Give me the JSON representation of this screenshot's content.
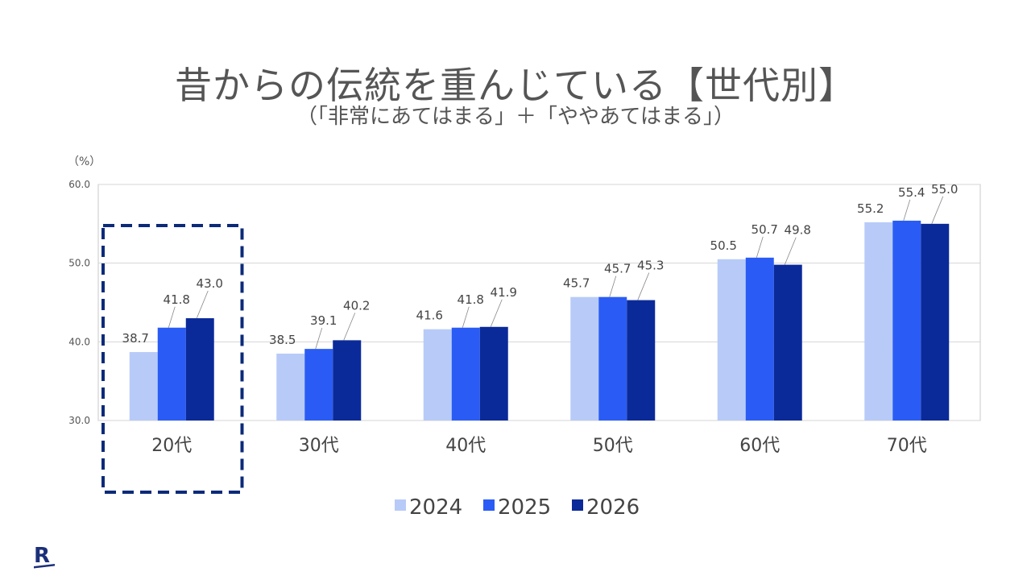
{
  "page": {
    "title": "昔からの伝統を重んじている【世代別】",
    "subtitle": "（「非常にあてはまる」＋「ややあてはまる」）",
    "brand_logo": "R"
  },
  "chart_data": {
    "type": "bar",
    "unit_label": "（%）",
    "categories": [
      "20代",
      "30代",
      "40代",
      "50代",
      "60代",
      "70代"
    ],
    "series": [
      {
        "name": "2024",
        "color": "#b8cbf8",
        "values": [
          38.7,
          38.5,
          41.6,
          45.7,
          50.5,
          55.2
        ]
      },
      {
        "name": "2025",
        "color": "#2a5cf5",
        "values": [
          41.8,
          39.1,
          41.8,
          45.7,
          50.7,
          55.4
        ]
      },
      {
        "name": "2026",
        "color": "#0b2a99",
        "values": [
          43.0,
          40.2,
          41.9,
          45.3,
          49.8,
          55.0
        ]
      }
    ],
    "value_labels": [
      [
        "38.7",
        "41.8",
        "43.0"
      ],
      [
        "38.5",
        "39.1",
        "40.2"
      ],
      [
        "41.6",
        "41.8",
        "41.9"
      ],
      [
        "45.7",
        "45.7",
        "45.3"
      ],
      [
        "50.5",
        "50.7",
        "49.8"
      ],
      [
        "55.2",
        "55.4",
        "55.0"
      ]
    ],
    "ylim": [
      30.0,
      60.0
    ],
    "yticks": [
      "30.0",
      "40.0",
      "50.0",
      "60.0"
    ],
    "grid": true,
    "legend_position": "bottom-center",
    "highlight_category": "20代",
    "highlight_color": "#0b2a7a"
  }
}
